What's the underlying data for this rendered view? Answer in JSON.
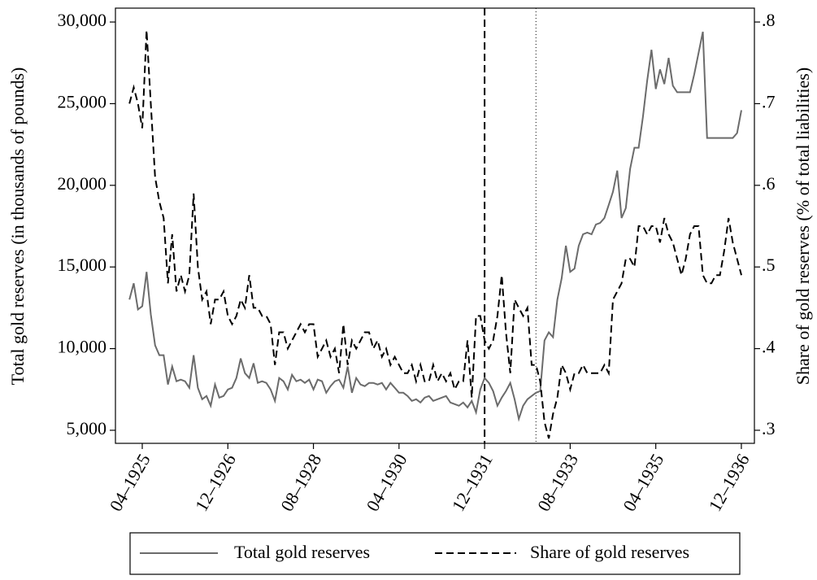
{
  "chart_data": {
    "type": "line",
    "ylabel": "Total gold reserves (in thousands of pounds)",
    "y2label": "Share of gold reserves (% of total liabilities)",
    "x": [
      "01–1925",
      "02–1925",
      "03–1925",
      "04–1925",
      "05–1925",
      "06–1925",
      "07–1925",
      "08–1925",
      "09–1925",
      "10–1925",
      "11–1925",
      "12–1925",
      "01–1926",
      "02–1926",
      "03–1926",
      "04–1926",
      "05–1926",
      "06–1926",
      "07–1926",
      "08–1926",
      "09–1926",
      "10–1926",
      "11–1926",
      "12–1926",
      "01–1927",
      "02–1927",
      "03–1927",
      "04–1927",
      "05–1927",
      "06–1927",
      "07–1927",
      "08–1927",
      "09–1927",
      "10–1927",
      "11–1927",
      "12–1927",
      "01–1928",
      "02–1928",
      "03–1928",
      "04–1928",
      "05–1928",
      "06–1928",
      "07–1928",
      "08–1928",
      "09–1928",
      "10–1928",
      "11–1928",
      "12–1928",
      "01–1929",
      "02–1929",
      "03–1929",
      "04–1929",
      "05–1929",
      "06–1929",
      "07–1929",
      "08–1929",
      "09–1929",
      "10–1929",
      "11–1929",
      "12–1929",
      "01–1930",
      "02–1930",
      "03–1930",
      "04–1930",
      "05–1930",
      "06–1930",
      "07–1930",
      "08–1930",
      "09–1930",
      "10–1930",
      "11–1930",
      "12–1930",
      "01–1931",
      "02–1931",
      "03–1931",
      "04–1931",
      "05–1931",
      "06–1931",
      "07–1931",
      "08–1931",
      "09–1931",
      "10–1931",
      "11–1931",
      "12–1931",
      "01–1932",
      "02–1932",
      "03–1932",
      "04–1932",
      "05–1932",
      "06–1932",
      "07–1932",
      "08–1932",
      "09–1932",
      "10–1932",
      "11–1932",
      "12–1932",
      "01–1933",
      "02–1933",
      "03–1933",
      "04–1933",
      "05–1933",
      "06–1933",
      "07–1933",
      "08–1933",
      "09–1933",
      "10–1933",
      "11–1933",
      "12–1933",
      "01–1934",
      "02–1934",
      "03–1934",
      "04–1934",
      "05–1934",
      "06–1934",
      "07–1934",
      "08–1934",
      "09–1934",
      "10–1934",
      "11–1934",
      "12–1934",
      "01–1935",
      "02–1935",
      "03–1935",
      "04–1935",
      "05–1935",
      "06–1935",
      "07–1935",
      "08–1935",
      "09–1935",
      "10–1935",
      "11–1935",
      "12–1935",
      "01–1936",
      "02–1936",
      "03–1936",
      "04–1936",
      "05–1936",
      "06–1936",
      "07–1936",
      "08–1936",
      "09–1936",
      "10–1936",
      "11–1936",
      "12–1936"
    ],
    "xticks": [
      "04–1925",
      "12–1926",
      "08–1928",
      "04–1930",
      "12–1931",
      "08–1933",
      "04–1935",
      "12–1936"
    ],
    "ylim": [
      4200,
      30850
    ],
    "yticks": [
      {
        "value": 5000,
        "label": "5,000"
      },
      {
        "value": 10000,
        "label": "10,000"
      },
      {
        "value": 15000,
        "label": "15,000"
      },
      {
        "value": 20000,
        "label": "20,000"
      },
      {
        "value": 25000,
        "label": "25,000"
      },
      {
        "value": 30000,
        "label": "30,000"
      }
    ],
    "y2lim": [
      0.284,
      0.817
    ],
    "y2ticks": [
      {
        "value": 0.3,
        "label": ".3"
      },
      {
        "value": 0.4,
        "label": ".4"
      },
      {
        "value": 0.5,
        "label": ".5"
      },
      {
        "value": 0.6,
        "label": ".6"
      },
      {
        "value": 0.7,
        "label": ".7"
      },
      {
        "value": 0.8,
        "label": ".8"
      }
    ],
    "vlines": [
      {
        "x": "12–1931",
        "style": "dashed"
      },
      {
        "x": "12–1932",
        "style": "dotted"
      }
    ],
    "series": [
      {
        "name": "Total gold reserves",
        "color": "#6b6b6b",
        "style": "solid",
        "values": [
          13000,
          14000,
          12400,
          12600,
          14700,
          12100,
          10200,
          9600,
          9600,
          7800,
          8900,
          8000,
          8100,
          8000,
          7600,
          9600,
          7600,
          6900,
          7100,
          6500,
          7800,
          7000,
          7100,
          7500,
          7600,
          8200,
          9400,
          8500,
          8200,
          9100,
          7900,
          8000,
          7900,
          7500,
          6800,
          8200,
          8000,
          7500,
          8400,
          8000,
          8100,
          7900,
          8100,
          7500,
          8100,
          8000,
          7300,
          7700,
          8000,
          8100,
          7600,
          8900,
          7300,
          8200,
          7800,
          7700,
          7900,
          7900,
          7800,
          7900,
          7500,
          7900,
          7600,
          7300,
          7300,
          7100,
          6800,
          6900,
          6700,
          7000,
          7100,
          6800,
          6900,
          7000,
          7100,
          6700,
          6600,
          6500,
          6700,
          6400,
          6800,
          6100,
          7500,
          8200,
          7900,
          7400,
          6500,
          7000,
          7400,
          7900,
          6900,
          5700,
          6500,
          6900,
          7100,
          7300,
          7400,
          10500,
          11000,
          10700,
          13000,
          14300,
          16300,
          14700,
          14900,
          16300,
          17000,
          17100,
          17000,
          17600,
          17700,
          18000,
          18800,
          19600,
          20900,
          18000,
          18600,
          21000,
          22300,
          22300,
          24200,
          26400,
          28300,
          25900,
          27100,
          26200,
          27800,
          26100,
          25700,
          25700,
          25700,
          25700,
          26800,
          28100,
          29400,
          22900,
          22900,
          22900,
          22900,
          22900,
          22900,
          22900,
          23200,
          24600
        ]
      },
      {
        "name": "Share of gold reserves",
        "color": "#000000",
        "style": "dashed",
        "axis": "y2",
        "values": [
          0.7,
          0.72,
          0.7,
          0.67,
          0.79,
          0.7,
          0.61,
          0.58,
          0.56,
          0.48,
          0.54,
          0.47,
          0.49,
          0.47,
          0.49,
          0.59,
          0.5,
          0.46,
          0.47,
          0.43,
          0.46,
          0.46,
          0.47,
          0.44,
          0.43,
          0.44,
          0.46,
          0.45,
          0.49,
          0.45,
          0.45,
          0.44,
          0.44,
          0.43,
          0.38,
          0.42,
          0.42,
          0.4,
          0.41,
          0.42,
          0.43,
          0.42,
          0.43,
          0.43,
          0.39,
          0.4,
          0.41,
          0.39,
          0.4,
          0.37,
          0.43,
          0.38,
          0.41,
          0.4,
          0.41,
          0.42,
          0.42,
          0.4,
          0.41,
          0.39,
          0.4,
          0.38,
          0.39,
          0.38,
          0.37,
          0.37,
          0.38,
          0.36,
          0.38,
          0.36,
          0.36,
          0.38,
          0.36,
          0.37,
          0.36,
          0.37,
          0.35,
          0.36,
          0.36,
          0.41,
          0.34,
          0.44,
          0.44,
          0.41,
          0.4,
          0.41,
          0.44,
          0.49,
          0.42,
          0.37,
          0.46,
          0.45,
          0.44,
          0.45,
          0.38,
          0.38,
          0.36,
          0.31,
          0.29,
          0.32,
          0.34,
          0.38,
          0.37,
          0.35,
          0.37,
          0.37,
          0.38,
          0.37,
          0.37,
          0.37,
          0.37,
          0.38,
          0.37,
          0.46,
          0.47,
          0.48,
          0.51,
          0.51,
          0.5,
          0.55,
          0.55,
          0.54,
          0.55,
          0.55,
          0.53,
          0.56,
          0.54,
          0.53,
          0.51,
          0.49,
          0.51,
          0.54,
          0.55,
          0.55,
          0.49,
          0.48,
          0.48,
          0.49,
          0.49,
          0.52,
          0.56,
          0.53,
          0.51,
          0.49
        ]
      }
    ]
  }
}
